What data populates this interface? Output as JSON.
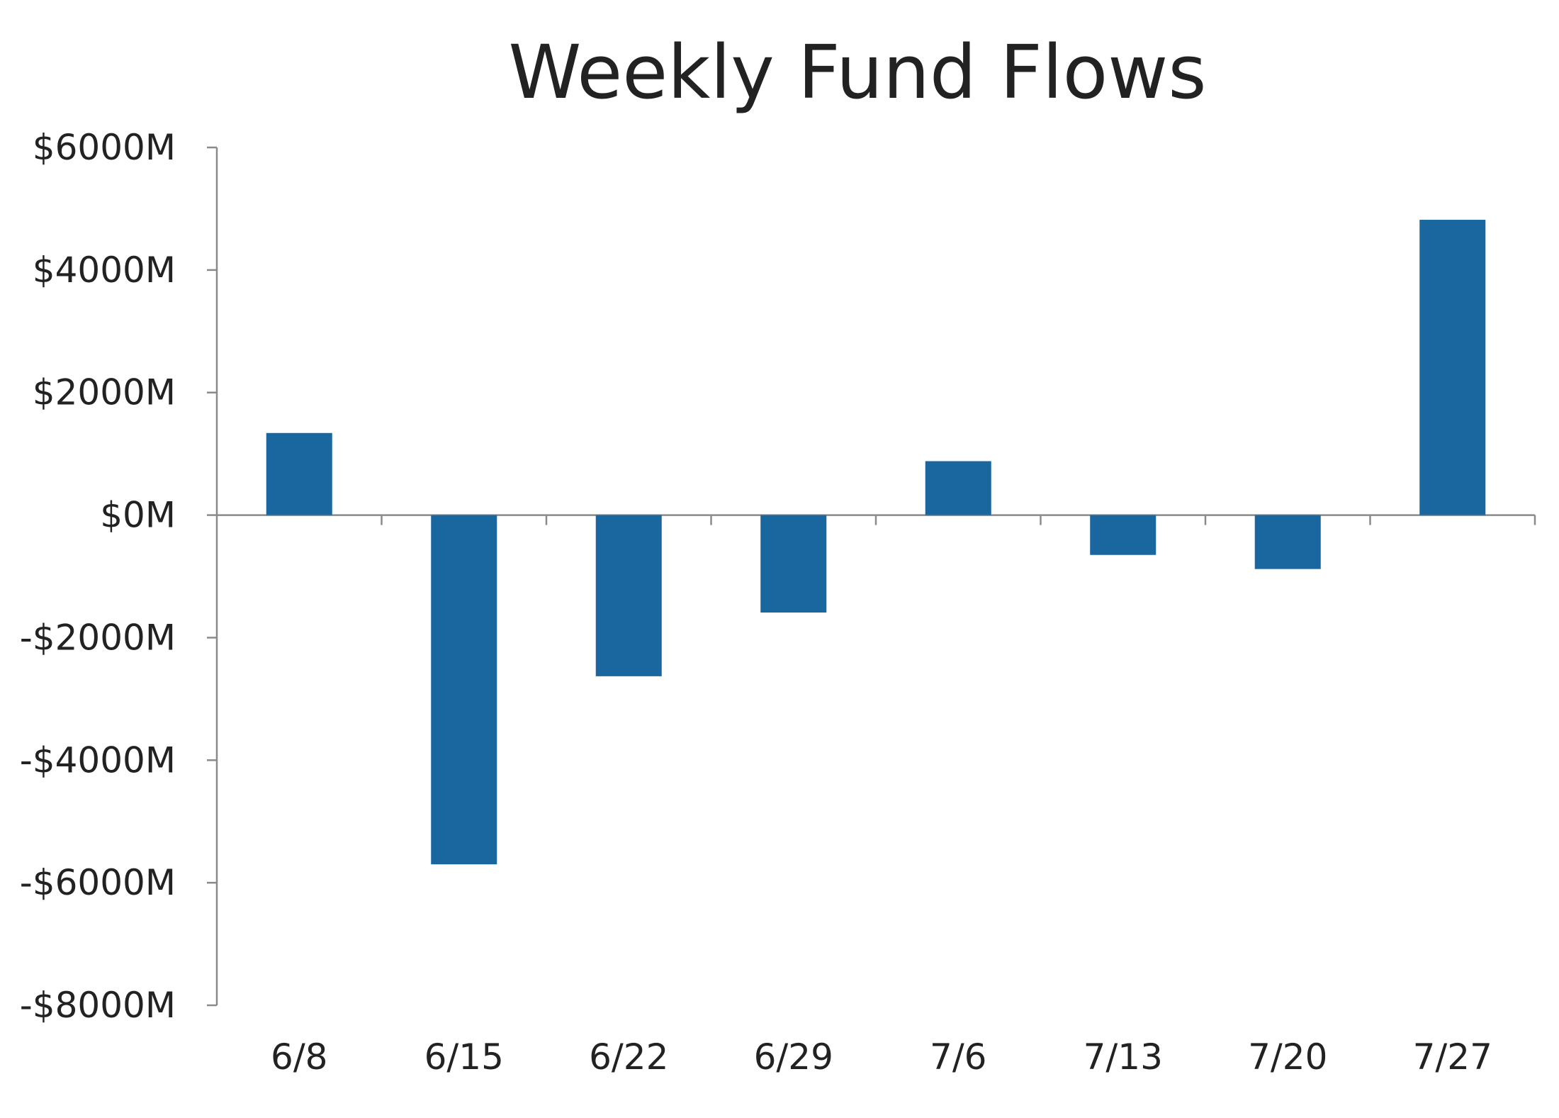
{
  "chart_data": {
    "type": "bar",
    "title": "Weekly Fund Flows",
    "xlabel": "",
    "ylabel": "",
    "categories": [
      "6/8",
      "6/15",
      "6/22",
      "6/29",
      "7/6",
      "7/13",
      "7/20",
      "7/27"
    ],
    "values": [
      1340,
      -5700,
      -2630,
      -1590,
      880,
      -650,
      -880,
      4820
    ],
    "ylim": [
      -8000,
      6000
    ],
    "yticks": [
      6000,
      4000,
      2000,
      0,
      -2000,
      -4000,
      -6000,
      -8000
    ],
    "ytick_labels": [
      "$6000M",
      "$4000M",
      "$2000M",
      "$0M",
      "-$2000M",
      "-$4000M",
      "-$6000M",
      "-$8000M"
    ],
    "grid": false,
    "legend": "none",
    "bar_color": "#1a67a0"
  }
}
